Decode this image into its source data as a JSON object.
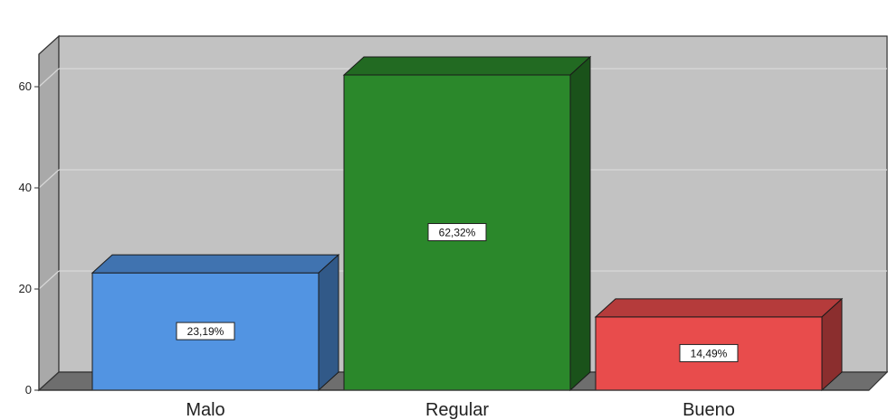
{
  "chart_data": {
    "type": "bar",
    "categories": [
      "Malo",
      "Regular",
      "Bueno"
    ],
    "values": [
      23.19,
      62.32,
      14.49
    ],
    "value_labels": [
      "23,19%",
      "62,32%",
      "14,49%"
    ],
    "colors": [
      "#5294e2",
      "#2b882b",
      "#e84c4c"
    ],
    "title": "",
    "xlabel": "",
    "ylabel": "",
    "ylim": [
      0,
      70
    ],
    "yticks": [
      0,
      20,
      40,
      60
    ],
    "ytick_labels": [
      "0",
      "20",
      "40",
      "60"
    ],
    "grid": true,
    "style": "3d",
    "legend": "none",
    "background_color": "#c2c2c2"
  }
}
